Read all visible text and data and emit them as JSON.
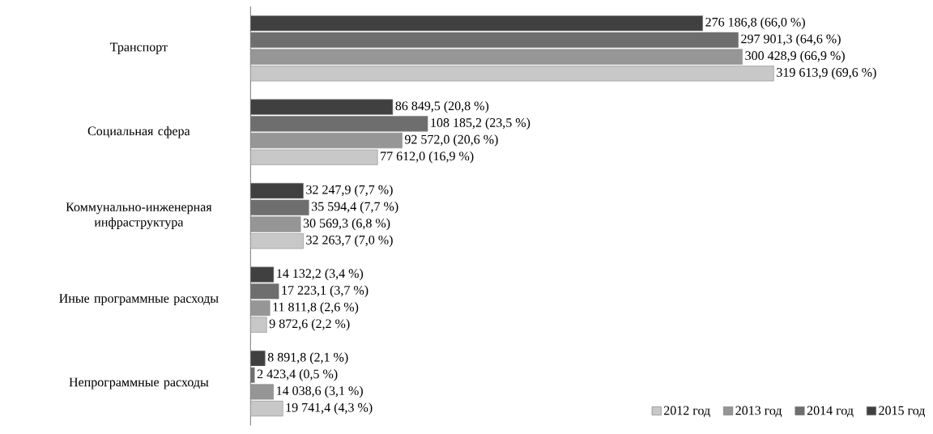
{
  "chart_data": {
    "type": "bar",
    "orientation": "horizontal",
    "categories": [
      "Транспорт",
      "Социальная сфера",
      "Коммунально-инженерная инфраструктура",
      "Иные программные расходы",
      "Непрограммные расходы"
    ],
    "series": [
      {
        "name": "2012 год",
        "color": "#c8c8c8",
        "values": [
          319613.9,
          77612.0,
          32263.7,
          9872.6,
          19741.4
        ],
        "value_labels": [
          "319 613,9 (69,6 %)",
          "77 612,0 (16,9 %)",
          "32 263,7 (7,0 %)",
          "9 872,6 (2,2 %)",
          "19 741,4 (4,3 %)"
        ]
      },
      {
        "name": "2013 год",
        "color": "#969696",
        "values": [
          300428.9,
          92572.0,
          30569.3,
          11811.8,
          14038.6
        ],
        "value_labels": [
          "300 428,9 (66,9 %)",
          "92 572,0 (20,6 %)",
          "30 569,3 (6,8 %)",
          "11 811,8 (2,6 %)",
          "14 038,6 (3,1 %)"
        ]
      },
      {
        "name": "2014 год",
        "color": "#6e6e6e",
        "values": [
          297901.3,
          108185.2,
          35594.4,
          17223.1,
          2423.4
        ],
        "value_labels": [
          "297 901,3 (64,6 %)",
          "108 185,2 (23,5 %)",
          "35 594,4 (7,7 %)",
          "17 223,1 (3,7 %)",
          "2 423,4 (0,5 %)"
        ]
      },
      {
        "name": "2015 год",
        "color": "#404040",
        "values": [
          276186.8,
          86849.5,
          32247.9,
          14132.2,
          8891.8
        ],
        "value_labels": [
          "276 186,8 (66,0 %)",
          "86 849,5 (20,8 %)",
          "32 247,9 (7,7 %)",
          "14 132,2 (3,4 %)",
          "8 891,8 (2,1 %)"
        ]
      }
    ],
    "legend": "bottom right"
  }
}
